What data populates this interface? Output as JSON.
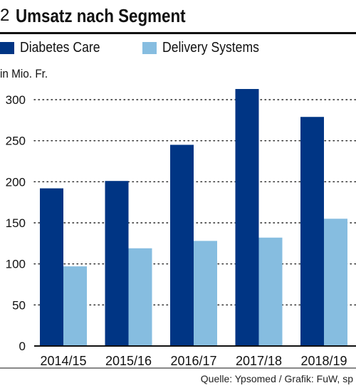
{
  "figure": {
    "number": "2",
    "title": "Umsatz nach Segment",
    "unit_label": "in Mio. Fr.",
    "source": "Quelle: Ypsomed / Grafik: FuW, sp"
  },
  "chart_data": {
    "type": "bar",
    "title": "Umsatz nach Segment",
    "ylabel": "in Mio. Fr.",
    "xlabel": "",
    "categories": [
      "2014/15",
      "2015/16",
      "2016/17",
      "2017/18",
      "2018/19"
    ],
    "series": [
      {
        "name": "Diabetes Care",
        "color": "#003584",
        "values": [
          192,
          201,
          245,
          313,
          279
        ]
      },
      {
        "name": "Delivery Systems",
        "color": "#86bde0",
        "values": [
          97,
          119,
          128,
          132,
          155
        ]
      }
    ],
    "ylim": [
      0,
      325
    ],
    "yticks": [
      0,
      50,
      100,
      150,
      200,
      250,
      300
    ],
    "grid": "dotted horizontal",
    "legend_position": "top"
  }
}
